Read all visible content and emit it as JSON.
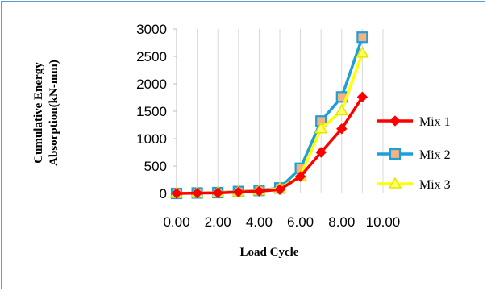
{
  "chart_data": {
    "type": "line",
    "xlabel": "Load Cycle",
    "ylabel_lines": [
      "Cumulative  Energy",
      "Absorption(kN-mm)"
    ],
    "x": [
      0,
      1,
      2,
      3,
      4,
      5,
      6,
      7,
      8,
      9
    ],
    "xlim": [
      0,
      10
    ],
    "x_ticks": [
      0,
      2,
      4,
      6,
      8,
      10
    ],
    "x_tick_labels": [
      "0.00",
      "2.00",
      "4.00",
      "6.00",
      "8.00",
      "10.00"
    ],
    "ylim": [
      0,
      3000
    ],
    "y_ticks": [
      0,
      500,
      1000,
      1500,
      2000,
      2500,
      3000
    ],
    "y_tick_labels": [
      "0",
      "500",
      "1000",
      "1500",
      "2000",
      "2500",
      "3000"
    ],
    "grid": "vertical",
    "legend": "right",
    "series": [
      {
        "name": "Mix 1",
        "color": "#ff0000",
        "marker": "diamond",
        "values": [
          0,
          5,
          10,
          25,
          40,
          70,
          310,
          750,
          1180,
          1760
        ]
      },
      {
        "name": "Mix 2",
        "color": "#1f9fd8",
        "marker": "square",
        "values": [
          0,
          8,
          15,
          35,
          55,
          100,
          460,
          1320,
          1760,
          2850
        ]
      },
      {
        "name": "Mix 3",
        "color": "#ffff00",
        "marker": "triangle",
        "values": [
          0,
          6,
          12,
          30,
          50,
          90,
          320,
          1180,
          1510,
          2560
        ]
      }
    ]
  }
}
